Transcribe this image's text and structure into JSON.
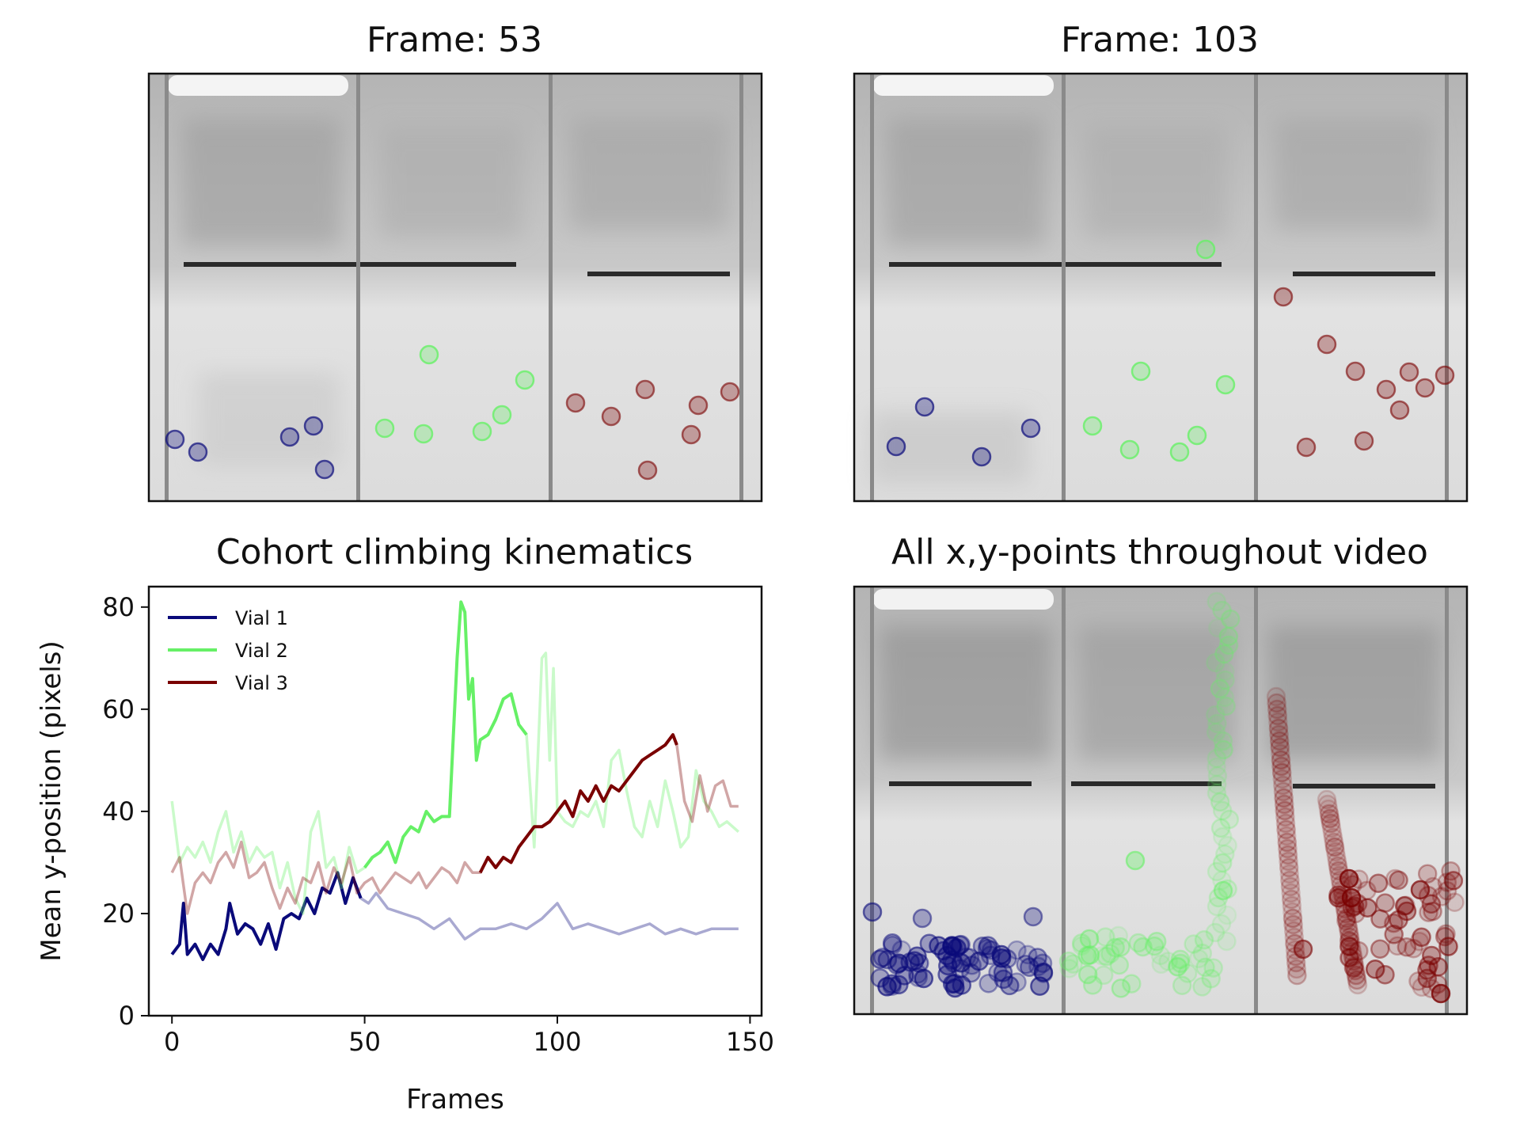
{
  "panels": {
    "frame_a": {
      "title": "Frame: 53"
    },
    "frame_b": {
      "title": "Frame: 103"
    },
    "all_points": {
      "title": "All x,y-points throughout video"
    }
  },
  "colors": {
    "vial1": "#0a0a7a",
    "vial2": "#66f066",
    "vial3": "#7a0000"
  },
  "chart_data": {
    "type": "line",
    "title": "Cohort climbing kinematics",
    "xlabel": "Frames",
    "ylabel": "Mean y-position (pixels)",
    "xlim": [
      -6,
      153
    ],
    "ylim": [
      0,
      84
    ],
    "xticks": [
      0,
      50,
      100,
      150
    ],
    "yticks": [
      0,
      20,
      40,
      60,
      80
    ],
    "legend_position": "top-left",
    "grid": false,
    "series": [
      {
        "name": "Vial 1",
        "color": "#0a0a7a",
        "highlight_range": [
          0,
          50
        ],
        "x": [
          0,
          2,
          3,
          4,
          6,
          8,
          10,
          12,
          14,
          15,
          17,
          19,
          21,
          23,
          25,
          27,
          29,
          31,
          33,
          35,
          37,
          39,
          41,
          43,
          45,
          47,
          49,
          51,
          53,
          56,
          60,
          64,
          68,
          72,
          76,
          80,
          84,
          88,
          92,
          96,
          100,
          104,
          108,
          112,
          116,
          120,
          124,
          128,
          132,
          136,
          140,
          144,
          147
        ],
        "values": [
          12,
          14,
          22,
          12,
          14,
          11,
          14,
          12,
          17,
          22,
          16,
          18,
          17,
          14,
          18,
          13,
          19,
          20,
          19,
          23,
          20,
          25,
          24,
          28,
          22,
          27,
          23,
          22,
          24,
          21,
          20,
          19,
          17,
          19,
          15,
          17,
          17,
          18,
          17,
          19,
          22,
          17,
          18,
          17,
          16,
          17,
          18,
          16,
          17,
          16,
          17,
          17,
          17
        ]
      },
      {
        "name": "Vial 2",
        "color": "#66f066",
        "highlight_range": [
          50,
          92
        ],
        "x": [
          0,
          2,
          4,
          6,
          8,
          10,
          12,
          14,
          16,
          18,
          20,
          22,
          24,
          26,
          28,
          30,
          32,
          34,
          36,
          38,
          40,
          42,
          44,
          46,
          48,
          50,
          52,
          54,
          56,
          58,
          60,
          62,
          64,
          66,
          68,
          70,
          72,
          74,
          75,
          76,
          77,
          78,
          79,
          80,
          82,
          84,
          86,
          88,
          90,
          92,
          94,
          96,
          97,
          98,
          99,
          100,
          102,
          104,
          106,
          108,
          110,
          112,
          114,
          116,
          118,
          120,
          122,
          124,
          126,
          128,
          130,
          132,
          134,
          136,
          138,
          140,
          142,
          144,
          147
        ],
        "values": [
          42,
          30,
          33,
          31,
          34,
          30,
          36,
          40,
          32,
          36,
          30,
          33,
          31,
          32,
          25,
          30,
          23,
          20,
          36,
          40,
          29,
          31,
          25,
          33,
          28,
          29,
          31,
          32,
          34,
          30,
          35,
          37,
          36,
          40,
          38,
          39,
          39,
          70,
          81,
          79,
          62,
          66,
          50,
          54,
          55,
          58,
          62,
          63,
          57,
          55,
          33,
          70,
          71,
          50,
          68,
          40,
          38,
          37,
          40,
          39,
          42,
          37,
          50,
          52,
          44,
          37,
          35,
          42,
          37,
          46,
          40,
          33,
          35,
          48,
          42,
          40,
          37,
          38,
          36
        ]
      },
      {
        "name": "Vial 3",
        "color": "#7a0000",
        "highlight_range": [
          80,
          131
        ],
        "x": [
          0,
          2,
          4,
          6,
          8,
          10,
          12,
          14,
          16,
          18,
          20,
          22,
          24,
          26,
          28,
          30,
          32,
          34,
          36,
          38,
          40,
          42,
          44,
          46,
          48,
          50,
          52,
          54,
          56,
          58,
          60,
          62,
          64,
          66,
          68,
          70,
          72,
          74,
          76,
          78,
          80,
          82,
          84,
          86,
          88,
          90,
          92,
          94,
          96,
          98,
          100,
          102,
          104,
          106,
          108,
          110,
          112,
          114,
          116,
          118,
          120,
          122,
          124,
          126,
          128,
          130,
          131,
          133,
          135,
          137,
          139,
          141,
          143,
          145,
          147
        ],
        "values": [
          28,
          31,
          20,
          26,
          28,
          26,
          30,
          32,
          29,
          34,
          27,
          28,
          30,
          25,
          21,
          25,
          22,
          27,
          26,
          30,
          24,
          29,
          26,
          31,
          24,
          26,
          27,
          24,
          26,
          28,
          27,
          26,
          28,
          25,
          27,
          29,
          28,
          26,
          30,
          28,
          28,
          31,
          29,
          31,
          30,
          33,
          35,
          37,
          37,
          38,
          40,
          42,
          39,
          44,
          42,
          45,
          42,
          45,
          44,
          46,
          48,
          50,
          51,
          52,
          53,
          55,
          53,
          42,
          38,
          47,
          40,
          45,
          46,
          41,
          41
        ]
      }
    ]
  }
}
